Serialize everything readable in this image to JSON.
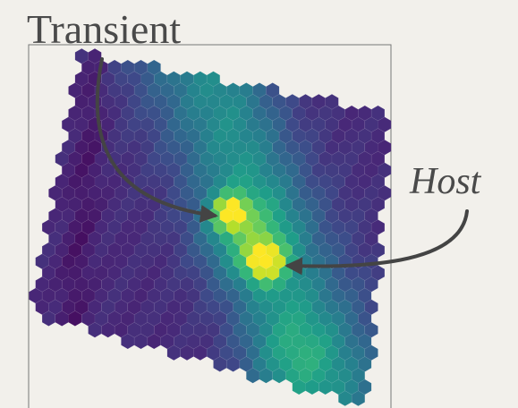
{
  "labels": {
    "transient": "Transient",
    "host": "Host"
  }
}
